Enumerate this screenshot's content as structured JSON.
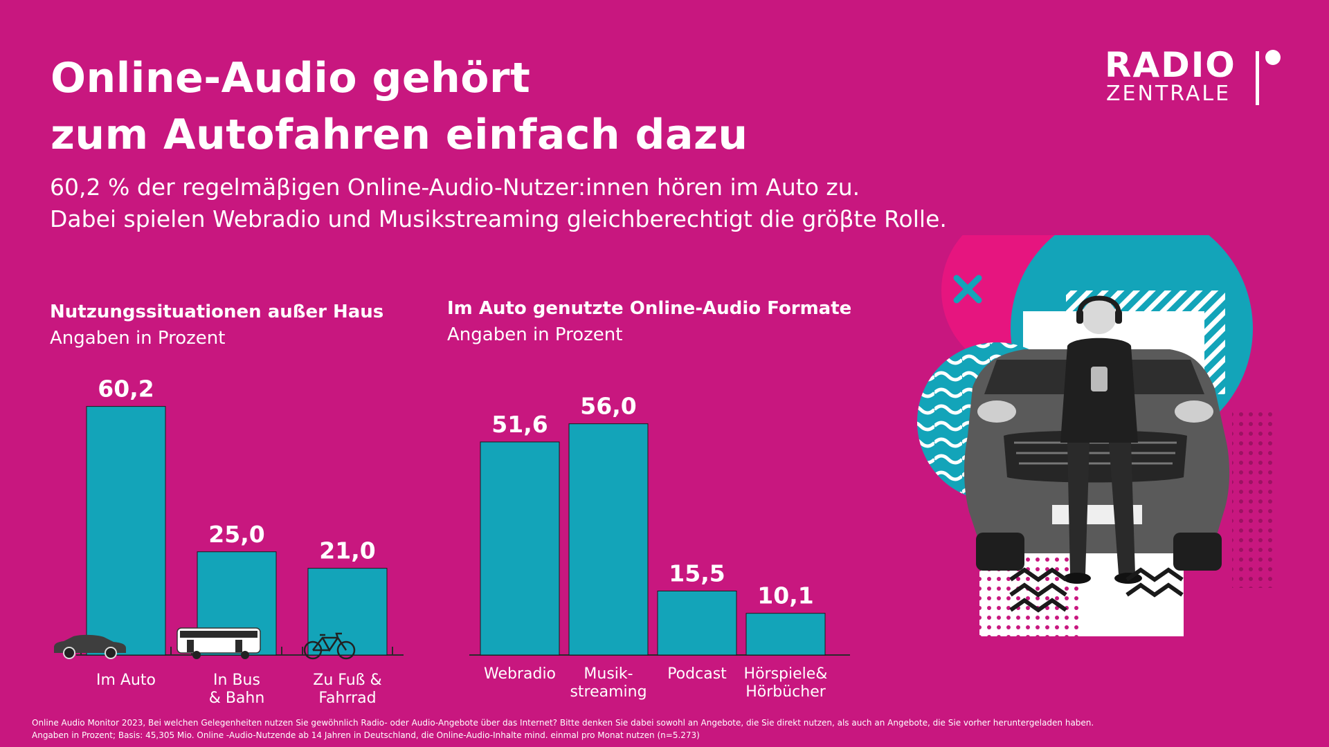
{
  "title": {
    "line1": "Online-Audio gehört",
    "line2": "zum Autofahren einfach dazu"
  },
  "subtitle": {
    "line1": "60,2 % der regelmäβigen Online-Audio-Nutzer:innen hören im Auto zu.",
    "line2": "Dabei spielen Webradio und Musikstreaming gleichberechtigt die gröβte Rolle."
  },
  "logo": {
    "word1": "RADIO",
    "word2": "ZENTRALE"
  },
  "colors": {
    "background": "#C8177F",
    "bar": "#13A4B9",
    "text": "#FFFFFF"
  },
  "chart_data": [
    {
      "type": "bar",
      "title": "Nutzungssituationen außer Haus",
      "subtitle": "Angaben in Prozent",
      "categories": [
        [
          "Im Auto"
        ],
        [
          "In Bus",
          "& Bahn"
        ],
        [
          "Zu Fuß &",
          "Fahrrad"
        ]
      ],
      "values": [
        60.2,
        25.0,
        21.0
      ],
      "value_labels": [
        "60,2",
        "25,0",
        "21,0"
      ],
      "category_icons": [
        "car-icon",
        "bus-icon",
        "bicycle-icon"
      ]
    },
    {
      "type": "bar",
      "title": "Im Auto genutzte Online-Audio Formate",
      "subtitle": "Angaben in Prozent",
      "categories": [
        [
          "Webradio"
        ],
        [
          "Musik-",
          "streaming"
        ],
        [
          "Podcast"
        ],
        [
          "Hörspiele&",
          "Hörbücher"
        ]
      ],
      "values": [
        51.6,
        56.0,
        15.5,
        10.1
      ],
      "value_labels": [
        "51,6",
        "56,0",
        "15,5",
        "10,1"
      ]
    }
  ],
  "footnote": {
    "line1": "Online Audio Monitor 2023, Bei welchen Gelegenheiten nutzen Sie gewöhnlich Radio- oder Audio-Angebote über das Internet? Bitte denken Sie dabei sowohl an Angebote, die Sie direkt nutzen, als auch an Angebote, die Sie vorher heruntergeladen haben.",
    "line2": "Angaben in Prozent; Basis: 45,305 Mio. Online -Audio-Nutzende ab 14 Jahren in Deutschland, die Online-Audio-Inhalte mind. einmal pro Monat nutzen (n=5.273)"
  }
}
